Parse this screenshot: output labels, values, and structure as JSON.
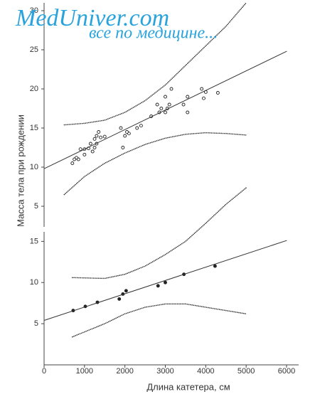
{
  "watermark": {
    "site": "MedUniver.com",
    "tagline": "все по медицине..."
  },
  "chart_data": [
    {
      "type": "scatter",
      "ylabel": "Масса тела при рождении",
      "xlim": [
        0,
        6000
      ],
      "ylim": [
        2,
        31
      ],
      "yticks": [
        5,
        10,
        15,
        20,
        25,
        30
      ],
      "series": [
        {
          "color": "#222222",
          "marker": "open",
          "x": [
            700,
            750,
            800,
            850,
            900,
            1000,
            1000,
            1100,
            1150,
            1200,
            1250,
            1250,
            1300,
            1300,
            1350,
            1400,
            1500,
            1900,
            1950,
            2000,
            2050,
            2100,
            2300,
            2400,
            2650,
            2800,
            2850,
            2900,
            3000,
            3000,
            3050,
            3100,
            3150,
            3450,
            3550,
            3550,
            3900,
            3950,
            4000,
            4300
          ],
          "values": [
            10.5,
            11,
            11.2,
            11,
            12.3,
            11.6,
            12.3,
            12.4,
            13,
            12,
            12.5,
            13.6,
            13,
            14,
            14.5,
            13.8,
            13.9,
            15,
            12.5,
            14,
            14.5,
            14.3,
            15,
            15.3,
            16.5,
            18,
            17,
            17.5,
            17,
            19,
            17.5,
            18,
            20,
            18,
            19,
            17,
            20,
            18.8,
            19.6,
            19.5
          ]
        }
      ],
      "fit": {
        "x": [
          0,
          6000
        ],
        "values": [
          9.8,
          24.8
        ]
      },
      "bands": [
        {
          "x": [
            500,
            1000,
            1500,
            2000,
            2500,
            3000,
            3500,
            4000,
            4500,
            5000
          ],
          "values": [
            15.4,
            15.6,
            16,
            17,
            18.5,
            20.5,
            23,
            25.5,
            28,
            31
          ]
        },
        {
          "x": [
            500,
            1000,
            1500,
            2000,
            2500,
            3000,
            3500,
            4000,
            4500,
            5000
          ],
          "values": [
            6.5,
            8.8,
            10.5,
            11.8,
            12.9,
            13.7,
            14.2,
            14.4,
            14.3,
            14.1
          ]
        }
      ]
    },
    {
      "type": "scatter",
      "xlabel": "Длина катетера, см",
      "xlim": [
        0,
        6000
      ],
      "xticks": [
        0,
        1000,
        2000,
        3000,
        4000,
        5000,
        6000
      ],
      "ylim": [
        0,
        16.5
      ],
      "yticks": [
        5,
        10,
        15
      ],
      "series": [
        {
          "color": "#222222",
          "marker": "filled",
          "x": [
            720,
            1020,
            1320,
            1860,
            1950,
            2030,
            2820,
            3000,
            3460,
            4230
          ],
          "values": [
            6.6,
            7.1,
            7.6,
            8,
            8.6,
            9,
            9.6,
            10,
            11,
            12
          ]
        }
      ],
      "fit": {
        "x": [
          0,
          6000
        ],
        "values": [
          5.4,
          15.1
        ]
      },
      "bands": [
        {
          "x": [
            700,
            1500,
            2000,
            2500,
            3000,
            3500,
            4000,
            4500,
            5000
          ],
          "values": [
            10.6,
            10.5,
            11,
            12,
            13.4,
            15,
            17.2,
            19.5,
            21.5
          ]
        },
        {
          "x": [
            700,
            1500,
            2000,
            2500,
            3000,
            3500,
            4000,
            4500,
            5000
          ],
          "values": [
            3.4,
            5,
            6.2,
            7,
            7.4,
            7.4,
            7,
            6.6,
            6.2
          ]
        }
      ]
    }
  ]
}
